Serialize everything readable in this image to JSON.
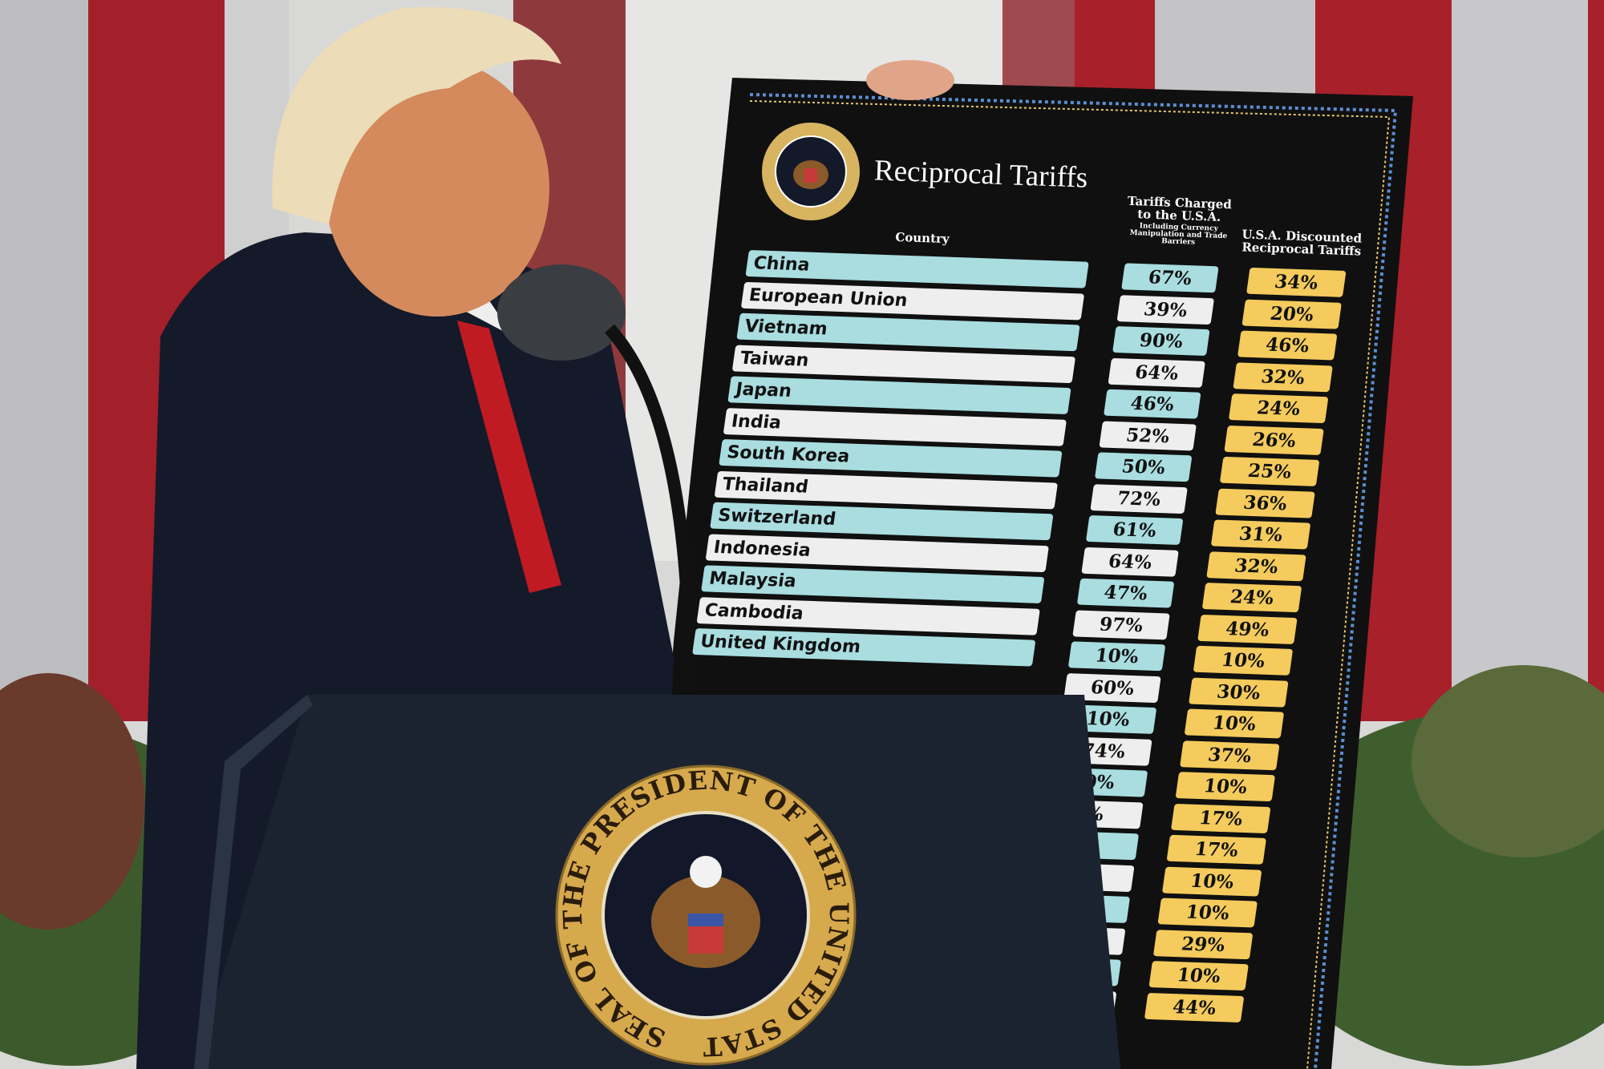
{
  "board": {
    "title": "Reciprocal Tariffs",
    "seal_text": "SEAL OF THE PRESIDENT OF THE UNITED STATES",
    "headers": {
      "country": "Country",
      "tariffs_charged": "Tariffs Charged to the U.S.A.",
      "tariffs_charged_note": "Including Currency Manipulation and Trade Barriers",
      "reciprocal": "U.S.A. Discounted Reciprocal Tariffs"
    },
    "rows": [
      {
        "country": "China",
        "charged": "67%",
        "reciprocal": "34%"
      },
      {
        "country": "European Union",
        "charged": "39%",
        "reciprocal": "20%"
      },
      {
        "country": "Vietnam",
        "charged": "90%",
        "reciprocal": "46%"
      },
      {
        "country": "Taiwan",
        "charged": "64%",
        "reciprocal": "32%"
      },
      {
        "country": "Japan",
        "charged": "46%",
        "reciprocal": "24%"
      },
      {
        "country": "India",
        "charged": "52%",
        "reciprocal": "26%"
      },
      {
        "country": "South Korea",
        "charged": "50%",
        "reciprocal": "25%"
      },
      {
        "country": "Thailand",
        "charged": "72%",
        "reciprocal": "36%"
      },
      {
        "country": "Switzerland",
        "charged": "61%",
        "reciprocal": "31%"
      },
      {
        "country": "Indonesia",
        "charged": "64%",
        "reciprocal": "32%"
      },
      {
        "country": "Malaysia",
        "charged": "47%",
        "reciprocal": "24%"
      },
      {
        "country": "Cambodia",
        "charged": "97%",
        "reciprocal": "49%"
      },
      {
        "country": "United Kingdom",
        "charged": "10%",
        "reciprocal": "10%"
      },
      {
        "country": "",
        "charged": "60%",
        "reciprocal": "30%"
      },
      {
        "country": "",
        "charged": "10%",
        "reciprocal": "10%"
      },
      {
        "country": "",
        "charged": "74%",
        "reciprocal": "37%"
      },
      {
        "country": "",
        "charged": "0%",
        "reciprocal": "10%"
      },
      {
        "country": "",
        "charged": "%",
        "reciprocal": "17%"
      },
      {
        "country": "",
        "charged": "%",
        "reciprocal": "17%"
      },
      {
        "country": "",
        "charged": "%",
        "reciprocal": "10%"
      },
      {
        "country": "",
        "charged": "",
        "reciprocal": "10%"
      },
      {
        "country": "",
        "charged": "",
        "reciprocal": "29%"
      },
      {
        "country": "",
        "charged": "",
        "reciprocal": "10%"
      },
      {
        "country": "",
        "charged": "",
        "reciprocal": "44%"
      }
    ]
  },
  "podium": {
    "seal_text": "SEAL OF THE PRESIDENT OF THE UNITED STATES"
  },
  "colors": {
    "board": "#101010",
    "teal": "#a9dde0",
    "white": "#eeeeee",
    "gold": "#f4cb5c",
    "flag_red": "#a8202a",
    "podium": "#1c2330"
  }
}
